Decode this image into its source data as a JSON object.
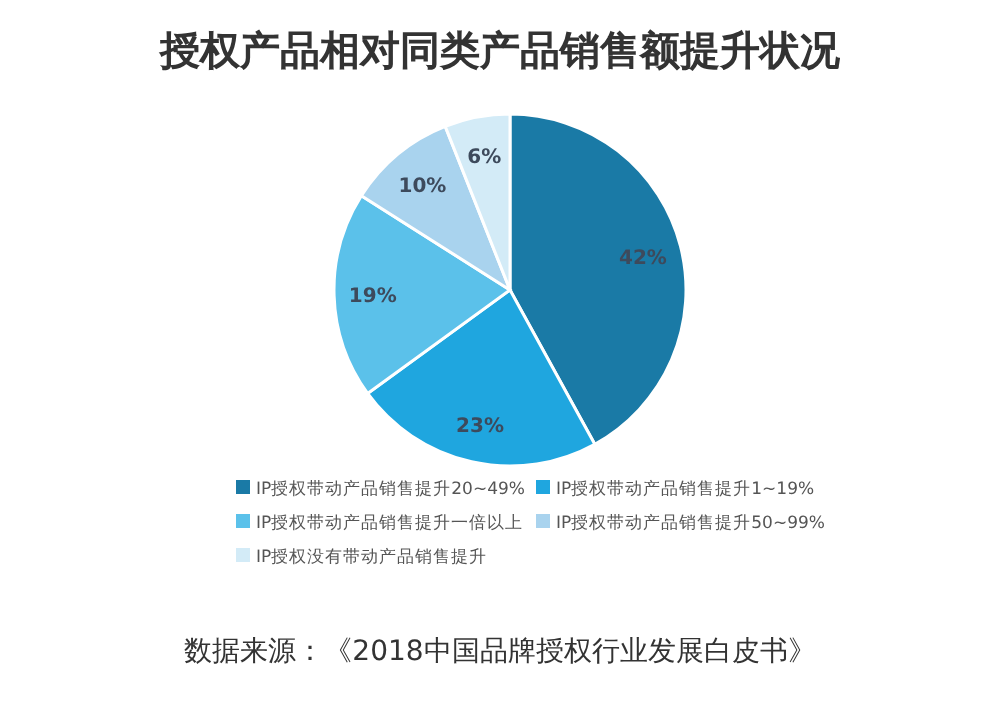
{
  "chart_data": {
    "type": "pie",
    "title": "授权产品相对同类产品销售额提升状况",
    "categories": [
      "IP授权带动产品销售提升20~49%",
      "IP授权带动产品销售提升1~19%",
      "IP授权带动产品销售提升一倍以上",
      "IP授权带动产品销售提升50~99%",
      "IP授权没有带动产品销售提升"
    ],
    "values": [
      42,
      23,
      19,
      10,
      6
    ],
    "colors": [
      "#1a7aa6",
      "#1fa6df",
      "#5bc1ea",
      "#a9d3ee",
      "#d3ebf7"
    ],
    "value_labels": [
      "42%",
      "23%",
      "19%",
      "10%",
      "6%"
    ],
    "legend": "bottom",
    "annotations": [
      "数据来源：《2018中国品牌授权行业发展白皮书》"
    ]
  }
}
